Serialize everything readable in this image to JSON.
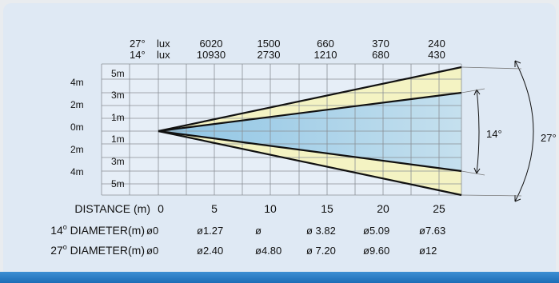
{
  "lux_header": {
    "row_27": {
      "angle": "27°",
      "unit": "lux",
      "values": [
        "6020",
        "1500",
        "660",
        "370",
        "240"
      ]
    },
    "row_14": {
      "angle": "14°",
      "unit": "lux",
      "values": [
        "10930",
        "2730",
        "1210",
        "680",
        "430"
      ]
    }
  },
  "left_scale_labels": [
    "4m",
    "2m",
    "0m",
    "2m",
    "4m"
  ],
  "grid_row_labels": [
    "5m",
    "3m",
    "1m",
    "1m",
    "3m",
    "5m"
  ],
  "angle_labels": {
    "inner": "14°",
    "outer": "27°"
  },
  "distance_row": {
    "label": "DISTANCE (m)",
    "values": [
      "0",
      "5",
      "10",
      "15",
      "20",
      "25"
    ]
  },
  "diameter_14_row": {
    "label_prefix": "14",
    "label_sup": "o",
    "label_suffix": " DIAMETER(m)",
    "values": [
      "ø0",
      "ø1.27",
      "ø",
      "ø 3.82",
      "ø5.09",
      "ø7.63"
    ]
  },
  "diameter_27_row": {
    "label_prefix": "27",
    "label_sup": "o",
    "label_suffix": " DIAMETER(m)",
    "values": [
      "ø0",
      "ø2.40",
      "ø4.80",
      "ø 7.20",
      "ø9.60",
      "ø12"
    ]
  },
  "colors": {
    "panel": "#dfe9f4",
    "bar": "#1c6db6",
    "grid": "#8a8f95",
    "outer_beam": "#f4f3c3",
    "inner_beam": "#a9cfe6"
  }
}
